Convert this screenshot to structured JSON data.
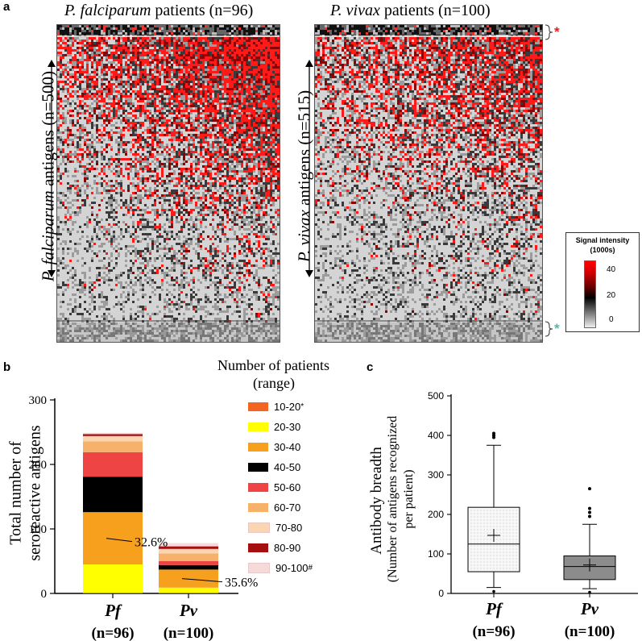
{
  "panels": {
    "a": "a",
    "b": "b",
    "c": "c"
  },
  "heatmap_a": {
    "pf_title_species": "P. falciparum",
    "pf_title_rest": "patients (n=96)",
    "pv_title_species": "P. vivax",
    "pv_title_rest": "patients (n=100)",
    "pf_axis_species": "P. falciparum",
    "pf_axis_rest": "antigens (n=500)",
    "pv_axis_species": "P. vivax",
    "pv_axis_rest": "antigens (n=515)",
    "red_star": "*",
    "teal_star": "*",
    "legend": {
      "title": "Signal intensity",
      "subtitle": "(1000s)",
      "ticks": [
        "40",
        "20",
        "0"
      ]
    }
  },
  "chart_data": [
    {
      "type": "bar",
      "subtype": "stacked",
      "ylabel_line1": "Total number of",
      "ylabel_line2": "seroreactive  antigens",
      "ylim": [
        0,
        300
      ],
      "yticks": [
        "0",
        "100",
        "200",
        "300"
      ],
      "categories": [
        "Pf",
        "Pv"
      ],
      "category_n": [
        "(n=96)",
        "(n=100)"
      ],
      "legend_title_line1": "Number of patients",
      "legend_title_line2": "(range)",
      "series": [
        {
          "name": "10-20",
          "sup": "*",
          "color": "#f26522",
          "values": [
            1,
            1
          ]
        },
        {
          "name": "20-30",
          "color": "#ffff00",
          "values": [
            44,
            8
          ]
        },
        {
          "name": "30-40",
          "color": "#f7a01e",
          "values": [
            81,
            28
          ]
        },
        {
          "name": "40-50",
          "color": "#000000",
          "values": [
            55,
            7
          ]
        },
        {
          "name": "50-60",
          "color": "#ef4444",
          "values": [
            38,
            6
          ]
        },
        {
          "name": "60-70",
          "color": "#f6b26b",
          "values": [
            17,
            12
          ]
        },
        {
          "name": "70-80",
          "color": "#fbd5b0",
          "values": [
            8,
            7
          ]
        },
        {
          "name": "80-90",
          "color": "#a50f0f",
          "values": [
            3,
            4
          ]
        },
        {
          "name": "90-100",
          "sup": "#",
          "color": "#f5dada",
          "values": [
            2,
            5
          ]
        }
      ],
      "annotations": [
        "32.6%",
        "35.6%"
      ]
    },
    {
      "type": "box",
      "ylabel_line1": "Antibody  breadth",
      "ylabel_line2": "(Number of antigens recognized",
      "ylabel_line3": "per patient)",
      "ylim": [
        0,
        500
      ],
      "yticks": [
        "0",
        "100",
        "200",
        "300",
        "400",
        "500"
      ],
      "categories": [
        "Pf",
        "Pv"
      ],
      "category_n": [
        "(n=96)",
        "(n=100)"
      ],
      "boxes": [
        {
          "whisker_low": 15,
          "q1": 55,
          "median": 125,
          "mean": 147,
          "q3": 218,
          "whisker_high": 375,
          "outliers": [
            395,
            400,
            405
          ],
          "low_outliers": [
            5
          ],
          "fill": "#f2f2f2"
        },
        {
          "whisker_low": 12,
          "q1": 35,
          "median": 68,
          "mean": 72,
          "q3": 95,
          "whisker_high": 175,
          "outliers": [
            195,
            205,
            215,
            265
          ],
          "low_outliers": [
            3
          ],
          "fill": "#8c8c8c"
        }
      ]
    }
  ]
}
